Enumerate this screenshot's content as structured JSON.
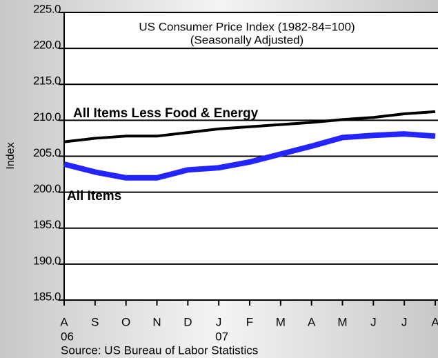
{
  "chart_data": {
    "type": "line",
    "title": "US Consumer Price Index (1982-84=100)",
    "subtitle": "(Seasonally Adjusted)",
    "y_label": "Index",
    "source": "Source: US Bureau of Labor Statistics",
    "categories": [
      "A",
      "S",
      "O",
      "N",
      "D",
      "J",
      "F",
      "M",
      "A",
      "M",
      "J",
      "J",
      "A"
    ],
    "year_labels": [
      "06",
      null,
      null,
      null,
      null,
      "07",
      null,
      null,
      null,
      null,
      null,
      null,
      null
    ],
    "series": [
      {
        "name": "All Items Less Food & Energy",
        "color": "#000000",
        "values": [
          207.0,
          207.5,
          207.8,
          207.8,
          208.3,
          208.8,
          209.1,
          209.4,
          209.7,
          210.1,
          210.4,
          210.9,
          211.2
        ]
      },
      {
        "name": "All Items",
        "color": "#2424ff",
        "values": [
          203.9,
          202.8,
          202.0,
          202.0,
          203.1,
          203.4,
          204.2,
          205.3,
          206.4,
          207.6,
          207.9,
          208.1,
          207.8
        ]
      }
    ],
    "ylim": [
      185,
      225
    ],
    "yticks": [
      {
        "value": 185,
        "label": "185.0"
      },
      {
        "value": 190,
        "label": "190.0"
      },
      {
        "value": 195,
        "label": "195.0"
      },
      {
        "value": 200,
        "label": "200.0"
      },
      {
        "value": 205,
        "label": "205.0"
      },
      {
        "value": 210,
        "label": "210.0"
      },
      {
        "value": 215,
        "label": "215.0"
      },
      {
        "value": 220,
        "label": "220.0"
      },
      {
        "value": 225,
        "label": "225.0"
      }
    ],
    "grid": true
  }
}
